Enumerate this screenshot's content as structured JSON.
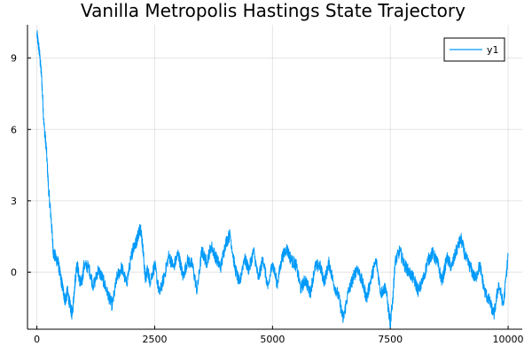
{
  "chart_data": {
    "type": "line",
    "title": "Vanilla Metropolis Hastings State Trajectory",
    "xlabel": "",
    "ylabel": "",
    "xlim": [
      -200,
      10300
    ],
    "ylim": [
      -2.4,
      10.4
    ],
    "xticks": [
      0,
      2500,
      5000,
      7500,
      10000
    ],
    "xtick_labels": [
      "0",
      "2500",
      "5000",
      "7500",
      "10000"
    ],
    "yticks": [
      0,
      3,
      6,
      9
    ],
    "ytick_labels": [
      "0",
      "3",
      "6",
      "9"
    ],
    "grid": true,
    "legend": {
      "position": "top-right",
      "entries": [
        "y1"
      ]
    },
    "colors": {
      "y1": "#009AF9"
    },
    "series": [
      {
        "name": "y1",
        "x": [
          0,
          50,
          100,
          150,
          200,
          250,
          300,
          350,
          400,
          450,
          500,
          550,
          600,
          650,
          700,
          750,
          800,
          850,
          900,
          950,
          1000,
          1100,
          1200,
          1300,
          1400,
          1500,
          1600,
          1700,
          1800,
          1900,
          2000,
          2050,
          2100,
          2150,
          2200,
          2250,
          2300,
          2350,
          2400,
          2500,
          2600,
          2700,
          2800,
          2900,
          3000,
          3100,
          3200,
          3300,
          3400,
          3500,
          3600,
          3700,
          3800,
          3900,
          4000,
          4100,
          4200,
          4300,
          4400,
          4500,
          4600,
          4700,
          4800,
          4900,
          5000,
          5100,
          5200,
          5300,
          5400,
          5500,
          5600,
          5700,
          5800,
          5900,
          6000,
          6100,
          6200,
          6300,
          6400,
          6500,
          6600,
          6700,
          6800,
          6900,
          7000,
          7100,
          7200,
          7300,
          7400,
          7500,
          7550,
          7600,
          7700,
          7800,
          7900,
          8000,
          8100,
          8200,
          8300,
          8400,
          8500,
          8600,
          8700,
          8800,
          8900,
          9000,
          9100,
          9200,
          9300,
          9400,
          9500,
          9600,
          9700,
          9800,
          9900,
          10000
        ],
        "y": [
          10.0,
          9.3,
          8.2,
          6.2,
          5.2,
          3.4,
          2.3,
          0.8,
          0.6,
          0.4,
          -0.2,
          -0.7,
          -1.2,
          -0.8,
          -1.4,
          -1.8,
          -0.6,
          0.4,
          -0.3,
          -0.5,
          0.3,
          0.2,
          -0.6,
          0.1,
          -0.3,
          -0.9,
          -1.4,
          -0.2,
          0.2,
          -0.5,
          0.6,
          1.1,
          1.2,
          1.6,
          1.9,
          1.0,
          -0.3,
          0.1,
          -0.4,
          0.3,
          -0.9,
          -0.2,
          0.7,
          0.2,
          0.8,
          -0.2,
          0.5,
          0.3,
          -0.8,
          0.9,
          0.4,
          1.1,
          0.6,
          0.2,
          1.2,
          1.6,
          0.2,
          -0.5,
          0.6,
          0.1,
          0.9,
          -0.3,
          0.6,
          -0.7,
          0.4,
          -0.5,
          0.6,
          1.0,
          0.5,
          0.3,
          -0.7,
          -0.3,
          -0.9,
          0.2,
          0.3,
          -0.4,
          0.4,
          -0.5,
          -1.0,
          -2.0,
          -0.9,
          -0.3,
          0.2,
          -0.4,
          -1.1,
          -0.2,
          0.5,
          -0.9,
          -0.6,
          -2.2,
          -1.2,
          0.4,
          0.9,
          0.3,
          0.0,
          -0.3,
          -0.8,
          -0.3,
          0.5,
          0.8,
          0.4,
          -0.4,
          0.6,
          0.2,
          0.9,
          1.4,
          0.6,
          0.2,
          -0.3,
          0.3,
          -0.8,
          -1.2,
          -1.8,
          -0.5,
          -1.4,
          0.7
        ]
      }
    ]
  }
}
